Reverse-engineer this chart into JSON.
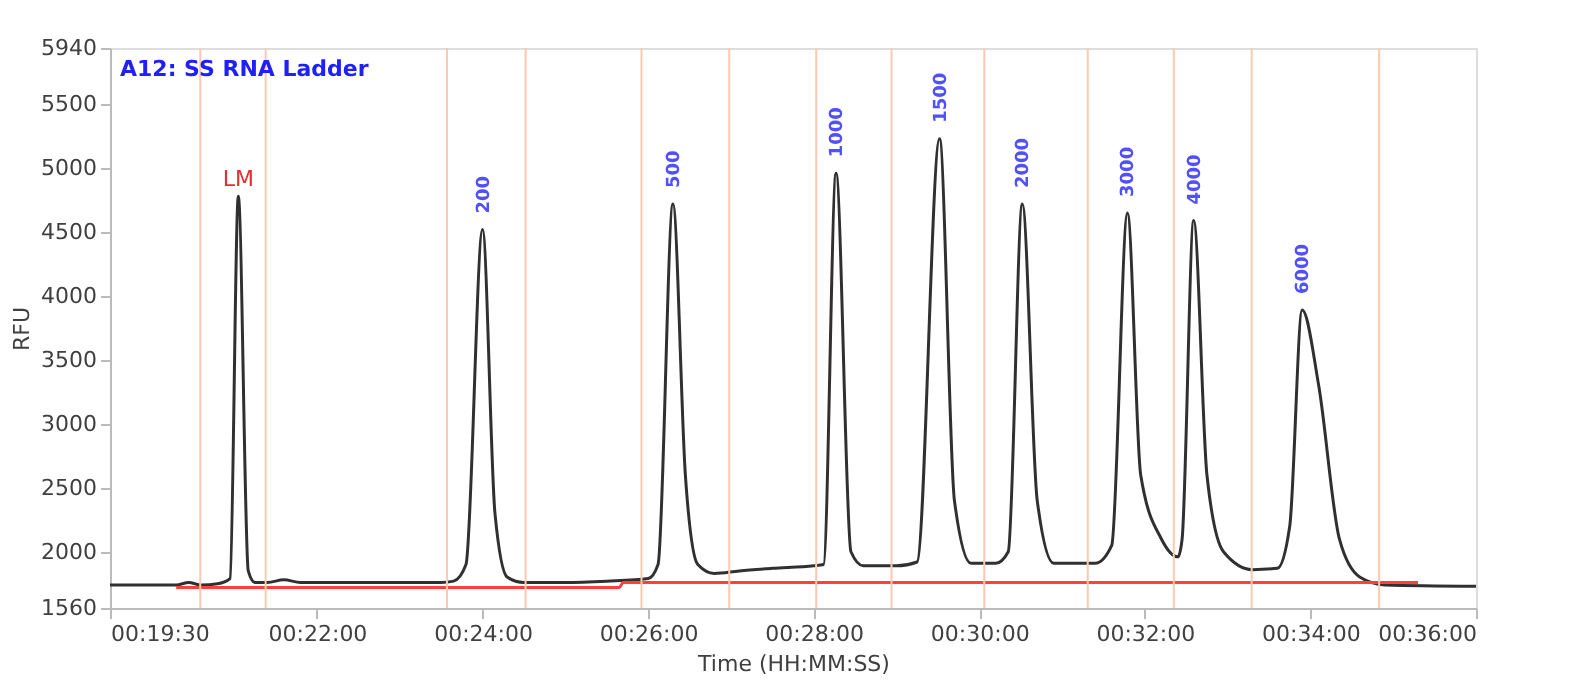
{
  "chart_data": {
    "type": "line",
    "title": "A12: SS RNA Ladder",
    "xlabel": "Time (HH:MM:SS)",
    "ylabel": "RFU",
    "xlim": [
      19.5,
      36
    ],
    "ylim": [
      1560,
      5940
    ],
    "xticks": [
      {
        "value": 19.5,
        "label": "00:19:30"
      },
      {
        "value": 22,
        "label": "00:22:00"
      },
      {
        "value": 24,
        "label": "00:24:00"
      },
      {
        "value": 26,
        "label": "00:26:00"
      },
      {
        "value": 28,
        "label": "00:28:00"
      },
      {
        "value": 30,
        "label": "00:30:00"
      },
      {
        "value": 32,
        "label": "00:32:00"
      },
      {
        "value": 34,
        "label": "00:34:00"
      },
      {
        "value": 36,
        "label": "00:36:00"
      }
    ],
    "yticks": [
      1560,
      2000,
      2500,
      3000,
      3500,
      4000,
      4500,
      5000,
      5500,
      5940
    ],
    "grid": false,
    "marker": "none",
    "line_style": "solid",
    "series": [
      {
        "color": "#303030",
        "x": [
          19.5,
          20.3,
          20.45,
          20.6,
          20.8,
          20.95,
          21.05,
          21.17,
          21.25,
          21.4,
          21.6,
          21.8,
          22.5,
          23.5,
          23.65,
          23.8,
          24.0,
          24.15,
          24.3,
          24.5,
          25.0,
          25.5,
          26.0,
          26.12,
          26.3,
          26.45,
          26.6,
          26.8,
          27.1,
          27.5,
          28.0,
          28.12,
          28.27,
          28.45,
          28.6,
          29.0,
          29.25,
          29.52,
          29.7,
          29.9,
          30.2,
          30.35,
          30.52,
          30.7,
          30.9,
          31.4,
          31.6,
          31.79,
          31.95,
          32.2,
          32.4,
          32.45,
          32.59,
          32.75,
          32.95,
          33.3,
          33.6,
          33.75,
          33.9,
          34.1,
          34.35,
          34.6,
          34.9,
          36.0
        ],
        "values": [
          1740,
          1740,
          1760,
          1740,
          1750,
          1790,
          4780,
          1850,
          1760,
          1760,
          1780,
          1760,
          1760,
          1760,
          1770,
          1900,
          4520,
          2300,
          1800,
          1760,
          1760,
          1770,
          1790,
          1900,
          4720,
          2600,
          1900,
          1830,
          1850,
          1870,
          1890,
          1900,
          4960,
          2000,
          1890,
          1890,
          1920,
          5230,
          2400,
          1910,
          1910,
          2000,
          4720,
          2400,
          1910,
          1910,
          2050,
          4650,
          2600,
          2100,
          1960,
          2100,
          4590,
          2600,
          2000,
          1860,
          1870,
          2200,
          3890,
          3300,
          2100,
          1800,
          1740,
          1730
        ]
      },
      {
        "color": "#ff4040",
        "x": [
          20.3,
          25.65,
          25.7,
          35.3
        ],
        "values": [
          1720,
          1720,
          1760,
          1760
        ]
      }
    ],
    "ref_lines": [
      {
        "axis": "x",
        "value": 20.59,
        "color": "#ffc8b0"
      },
      {
        "axis": "x",
        "value": 21.38,
        "color": "#ffc8b0"
      },
      {
        "axis": "x",
        "value": 23.57,
        "color": "#ffc8b0"
      },
      {
        "axis": "x",
        "value": 24.52,
        "color": "#ffc8b0"
      },
      {
        "axis": "x",
        "value": 25.92,
        "color": "#ffc8b0"
      },
      {
        "axis": "x",
        "value": 26.98,
        "color": "#ffc8b0"
      },
      {
        "axis": "x",
        "value": 28.03,
        "color": "#ffc8b0"
      },
      {
        "axis": "x",
        "value": 28.94,
        "color": "#ffc8b0"
      },
      {
        "axis": "x",
        "value": 30.06,
        "color": "#ffc8b0"
      },
      {
        "axis": "x",
        "value": 31.31,
        "color": "#ffc8b0"
      },
      {
        "axis": "x",
        "value": 32.35,
        "color": "#ffc8b0"
      },
      {
        "axis": "x",
        "value": 33.29,
        "color": "#ffc8b0"
      },
      {
        "axis": "x",
        "value": 34.83,
        "color": "#ffc8b0"
      }
    ],
    "annotations": [
      {
        "text": "LM",
        "x": 21.05,
        "y": 4780
      },
      {
        "text": "200",
        "x": 24.0,
        "y": 4520
      },
      {
        "text": "500",
        "x": 26.3,
        "y": 4720
      },
      {
        "text": "1000",
        "x": 28.27,
        "y": 4960
      },
      {
        "text": "1500",
        "x": 29.52,
        "y": 5230
      },
      {
        "text": "2000",
        "x": 30.52,
        "y": 4720
      },
      {
        "text": "3000",
        "x": 31.79,
        "y": 4650
      },
      {
        "text": "4000",
        "x": 32.59,
        "y": 4590
      },
      {
        "text": "6000",
        "x": 33.9,
        "y": 3890
      }
    ]
  }
}
